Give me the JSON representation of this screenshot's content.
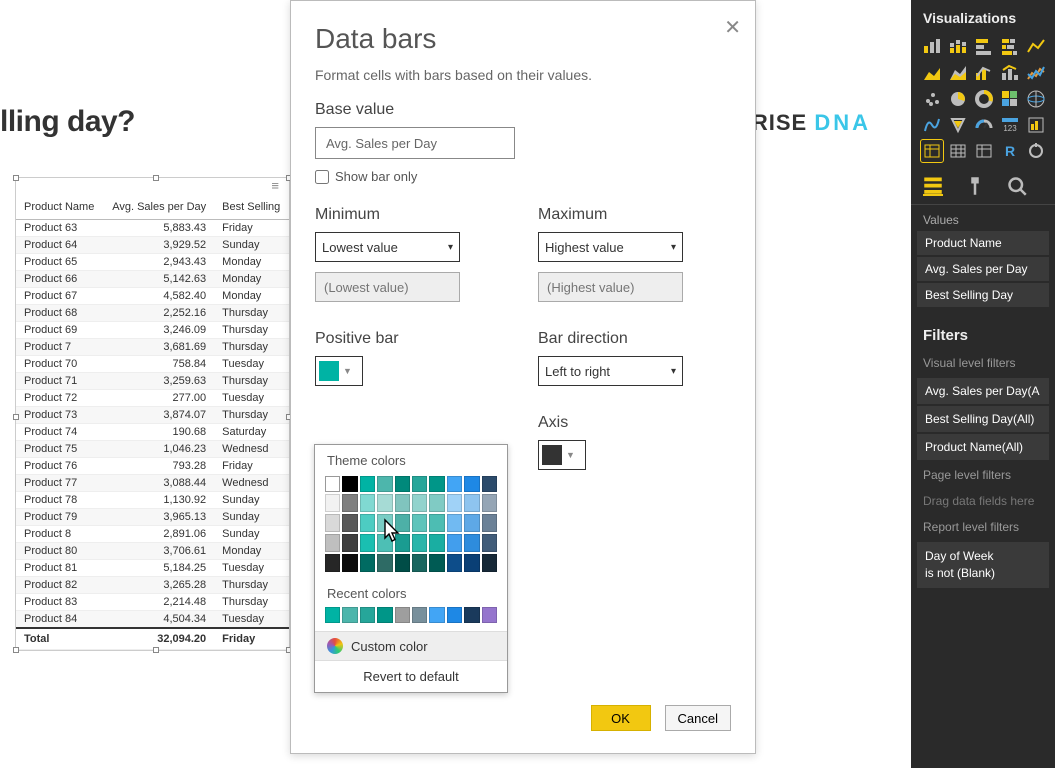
{
  "report": {
    "title": "lling day?"
  },
  "logo": {
    "a": "NTERPRISE ",
    "b": "DNA"
  },
  "table": {
    "columns": [
      "Product Name",
      "Avg. Sales per Day",
      "Best Selling"
    ],
    "rows": [
      [
        "Product 63",
        "5,883.43",
        "Friday"
      ],
      [
        "Product 64",
        "3,929.52",
        "Sunday"
      ],
      [
        "Product 65",
        "2,943.43",
        "Monday"
      ],
      [
        "Product 66",
        "5,142.63",
        "Monday"
      ],
      [
        "Product 67",
        "4,582.40",
        "Monday"
      ],
      [
        "Product 68",
        "2,252.16",
        "Thursday"
      ],
      [
        "Product 69",
        "3,246.09",
        "Thursday"
      ],
      [
        "Product 7",
        "3,681.69",
        "Thursday"
      ],
      [
        "Product 70",
        "758.84",
        "Tuesday"
      ],
      [
        "Product 71",
        "3,259.63",
        "Thursday"
      ],
      [
        "Product 72",
        "277.00",
        "Tuesday"
      ],
      [
        "Product 73",
        "3,874.07",
        "Thursday"
      ],
      [
        "Product 74",
        "190.68",
        "Saturday"
      ],
      [
        "Product 75",
        "1,046.23",
        "Wednesd"
      ],
      [
        "Product 76",
        "793.28",
        "Friday"
      ],
      [
        "Product 77",
        "3,088.44",
        "Wednesd"
      ],
      [
        "Product 78",
        "1,130.92",
        "Sunday"
      ],
      [
        "Product 79",
        "3,965.13",
        "Sunday"
      ],
      [
        "Product 8",
        "2,891.06",
        "Sunday"
      ],
      [
        "Product 80",
        "3,706.61",
        "Monday"
      ],
      [
        "Product 81",
        "5,184.25",
        "Tuesday"
      ],
      [
        "Product 82",
        "3,265.28",
        "Thursday"
      ],
      [
        "Product 83",
        "2,214.48",
        "Thursday"
      ],
      [
        "Product 84",
        "4,504.34",
        "Tuesday"
      ]
    ],
    "footer": [
      "Total",
      "32,094.20",
      "Friday"
    ]
  },
  "dialog": {
    "title": "Data bars",
    "desc": "Format cells with bars based on their values.",
    "base_label": "Base value",
    "base_value": "Avg. Sales per Day",
    "show_bar_only": "Show bar only",
    "min_label": "Minimum",
    "max_label": "Maximum",
    "min_select": "Lowest value",
    "max_select": "Highest value",
    "min_placeholder": "(Lowest value)",
    "max_placeholder": "(Highest value)",
    "positive_label": "Positive bar",
    "positive_color": "#00b3a4",
    "bar_dir_label": "Bar direction",
    "bar_dir_value": "Left to right",
    "axis_label": "Axis",
    "axis_color": "#333333",
    "ok": "OK",
    "cancel": "Cancel"
  },
  "picker": {
    "theme_label": "Theme colors",
    "row_top": [
      "#ffffff",
      "#000000",
      "#00b3a4",
      "#4db6ac",
      "#00897b",
      "#26a69a",
      "#009688",
      "#42a5f5",
      "#1e88e5",
      "#2c4b6b"
    ],
    "shades_light": [
      "#f2f2f2",
      "#7f7f7f",
      "#80d9d2",
      "#a6dbd5",
      "#80c4be",
      "#92d3cd",
      "#80cbc4",
      "#a0d2f7",
      "#8ec4ef",
      "#95a5b5"
    ],
    "shades_mid1": [
      "#d9d9d9",
      "#595959",
      "#4dccc2",
      "#79cdc5",
      "#4db0a7",
      "#5ec4bb",
      "#4dbdb3",
      "#71baf2",
      "#5ea8e6",
      "#6b8197"
    ],
    "shades_mid2": [
      "#bfbfbf",
      "#3f3f3f",
      "#1abfb1",
      "#4dbfb5",
      "#1a9c91",
      "#2ab5aa",
      "#1aaea2",
      "#429eed",
      "#2e8cdd",
      "#415c79"
    ],
    "shades_dark": [
      "#262626",
      "#0c0c0c",
      "#006b62",
      "#2e6b65",
      "#004d47",
      "#19665f",
      "#005b54",
      "#0d4d8a",
      "#0a3f75",
      "#172938"
    ],
    "recent_label": "Recent colors",
    "recent": [
      "#00b3a4",
      "#4db6ac",
      "#26a69a",
      "#009688",
      "#9e9e9e",
      "#78909c",
      "#42a5f5",
      "#1e88e5",
      "#1a3a5c",
      "#9575cd"
    ],
    "custom": "Custom color",
    "revert": "Revert to default"
  },
  "pane": {
    "title": "Visualizations",
    "values_label": "Values",
    "fields": [
      "Product Name",
      "Avg. Sales per Day",
      "Best Selling Day"
    ],
    "filters_title": "Filters",
    "visual_filters_label": "Visual level filters",
    "visual_filters": [
      "Avg. Sales per Day(A",
      "Best Selling Day(All)",
      "Product Name(All)"
    ],
    "page_filters_label": "Page level filters",
    "drag_hint": "Drag data fields here",
    "report_filters_label": "Report level filters",
    "report_filter_line1": "Day of Week",
    "report_filter_line2": "is not (Blank)"
  },
  "viz_icons": {
    "colors": {
      "yellow": "#f2c811",
      "blue": "#4aa3e0",
      "grey": "#bdbdbd",
      "green": "#6dbf6d",
      "orange": "#e29a3d"
    }
  }
}
